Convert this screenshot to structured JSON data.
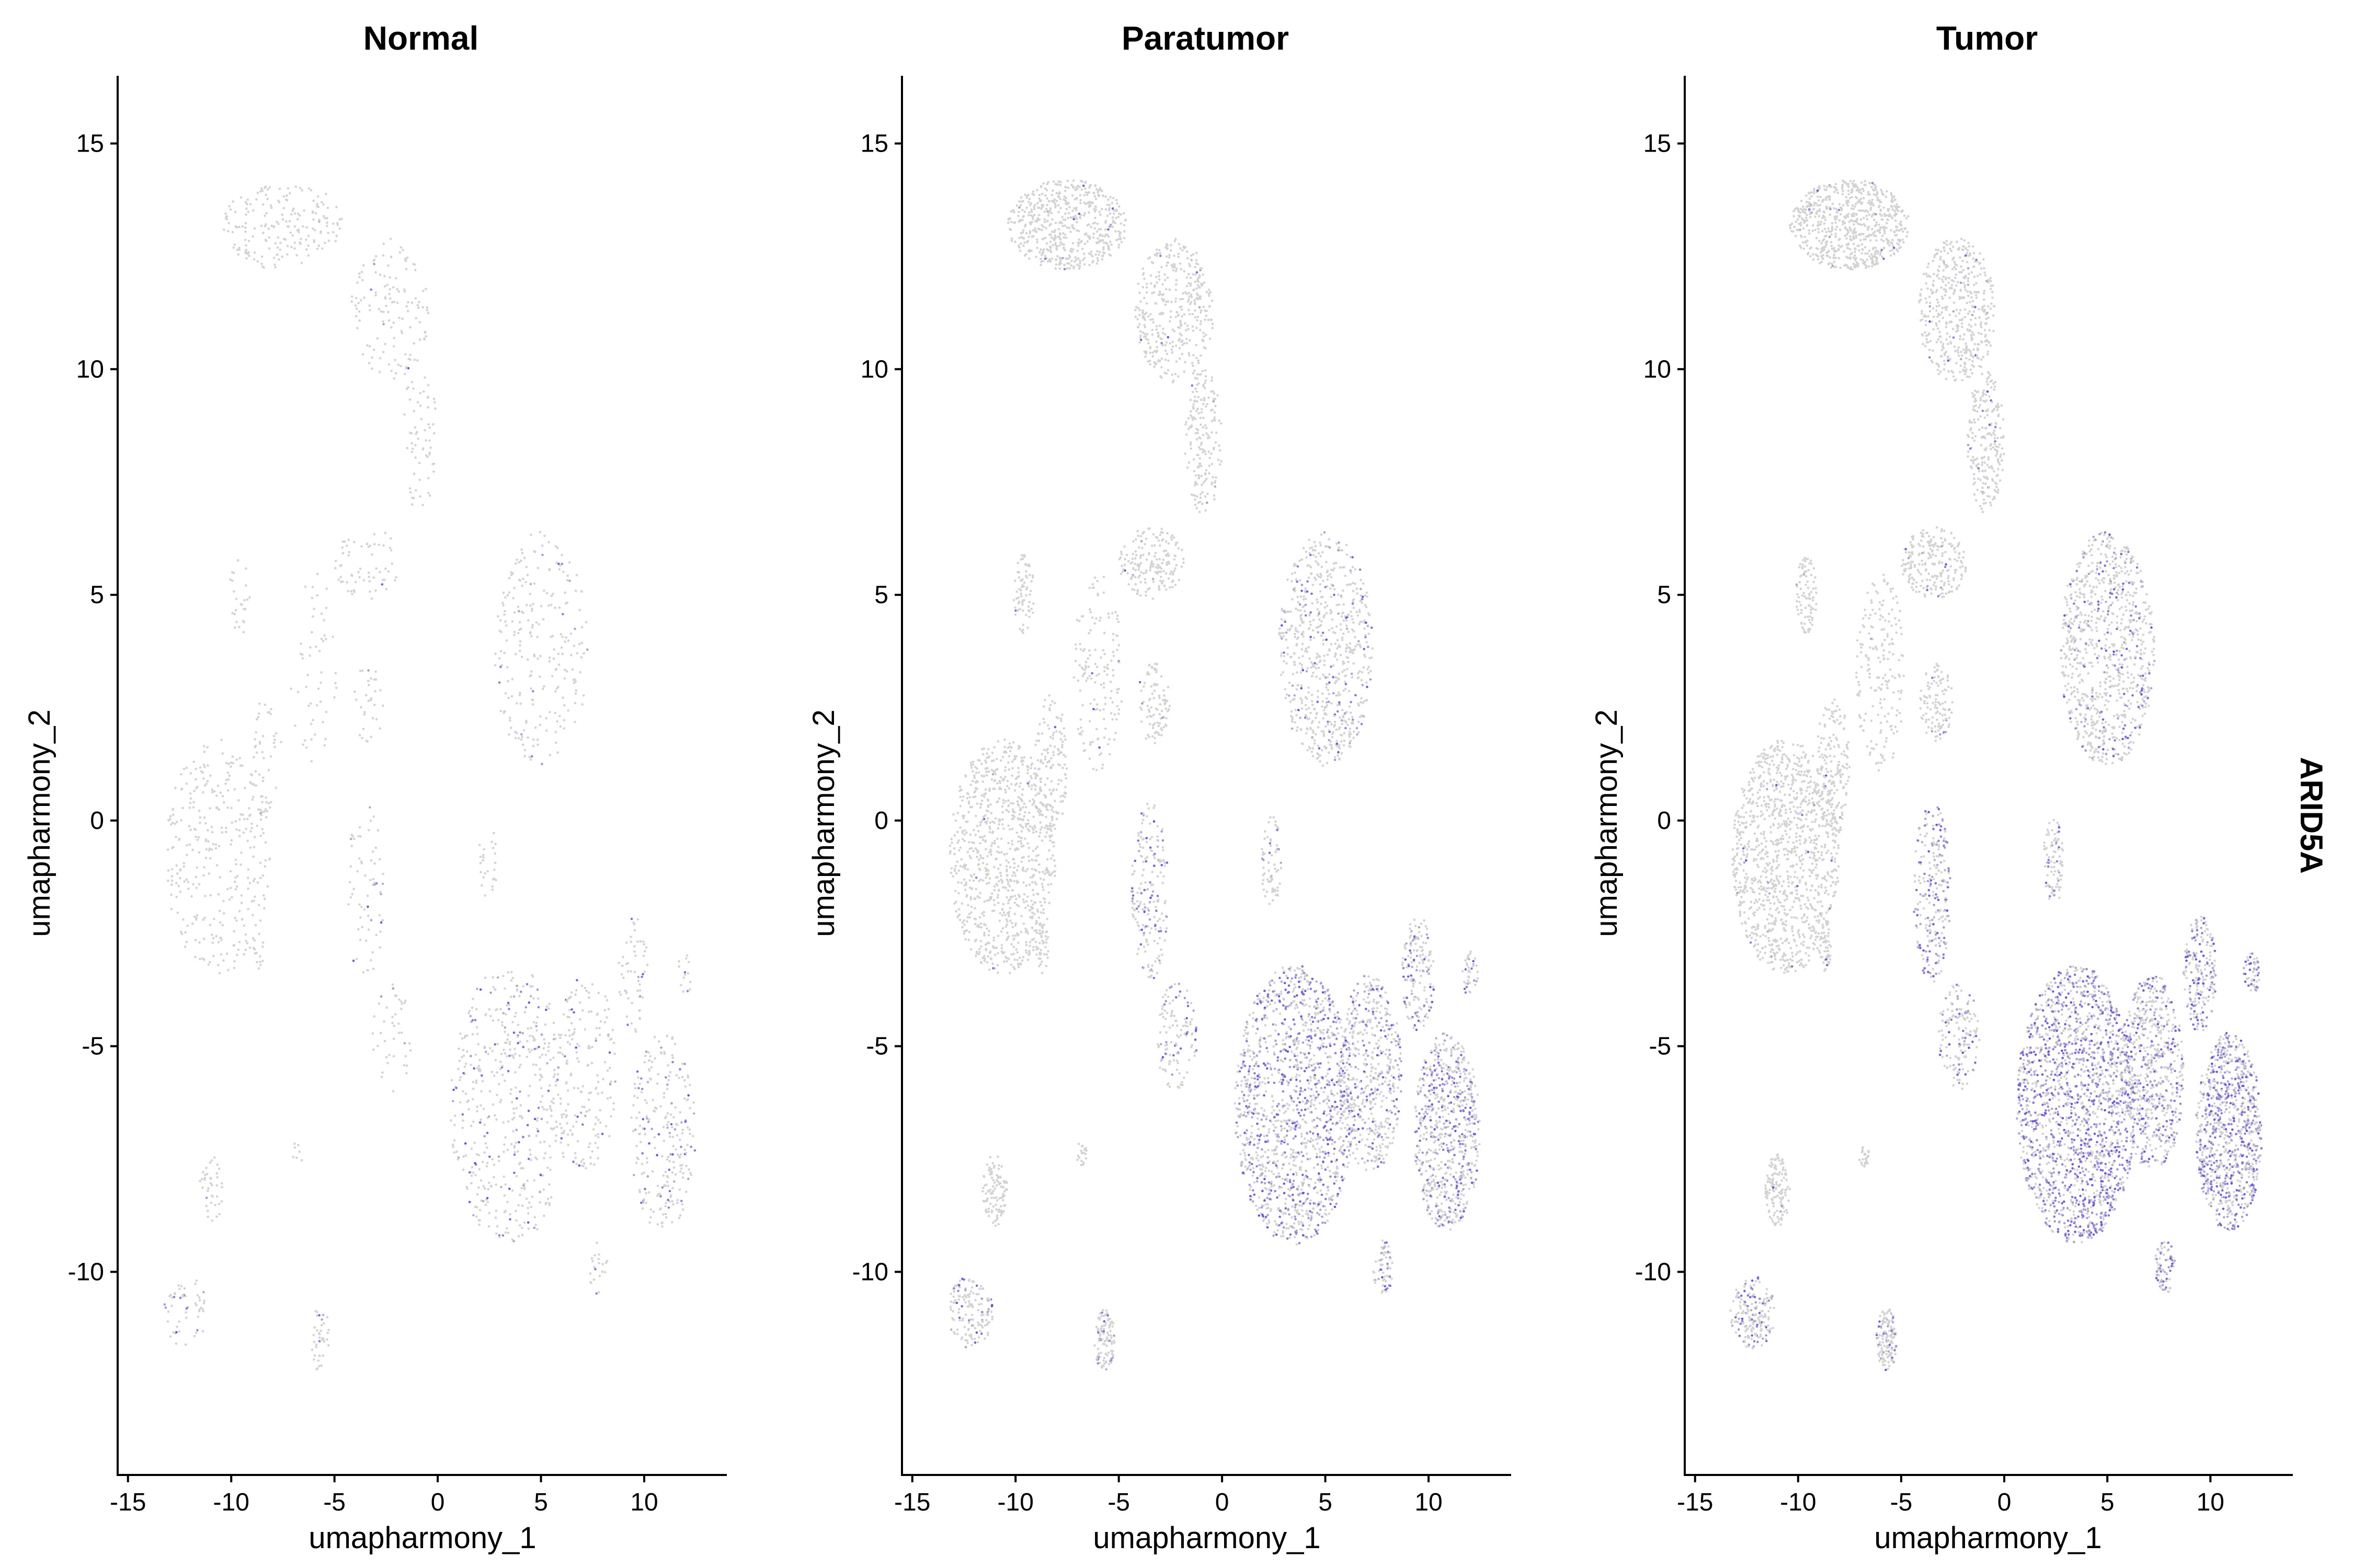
{
  "colors": {
    "low": "#d3d3d3",
    "high": "#6a4fd6",
    "axis": "#000000",
    "background": "#ffffff"
  },
  "chart_data": {
    "type": "scatter",
    "feature": "ARID5A",
    "xlabel": "umapharmony_1",
    "ylabel": "umapharmony_2",
    "xlim": [
      -15.5,
      14
    ],
    "ylim": [
      -14.5,
      16.5
    ],
    "xticks": [
      -15,
      -10,
      -5,
      0,
      5,
      10
    ],
    "yticks": [
      -10,
      -5,
      0,
      5,
      10,
      15
    ],
    "xtick_labels": [
      "-15",
      "-10",
      "-5",
      "0",
      "5",
      "10"
    ],
    "ytick_labels": [
      "-10",
      "-5",
      "0",
      "5",
      "10",
      "15"
    ],
    "grid": false,
    "legend": "none",
    "panels": [
      {
        "title": "Normal",
        "density": 0.35,
        "expression_level": 0.25
      },
      {
        "title": "Paratumor",
        "density": 1.0,
        "expression_level": 0.6
      },
      {
        "title": "Tumor",
        "density": 1.25,
        "expression_level": 0.8
      }
    ],
    "clusters": [
      {
        "name": "top-cap",
        "cx": -7.5,
        "cy": 13.2,
        "rx": 2.9,
        "ry": 1.0,
        "n": 560,
        "expr": 0.03
      },
      {
        "name": "top-arm",
        "cx": -2.3,
        "cy": 11.3,
        "rx": 1.9,
        "ry": 1.6,
        "n": 380,
        "expr": 0.05
      },
      {
        "name": "stem",
        "cx": -0.9,
        "cy": 8.4,
        "rx": 0.9,
        "ry": 1.6,
        "n": 180,
        "expr": 0.05
      },
      {
        "name": "mid-blob",
        "cx": -3.4,
        "cy": 5.7,
        "rx": 1.6,
        "ry": 0.8,
        "n": 180,
        "expr": 0.05
      },
      {
        "name": "bridge",
        "cx": -6.0,
        "cy": 3.3,
        "rx": 1.2,
        "ry": 2.2,
        "n": 150,
        "expr": 0.04
      },
      {
        "name": "small-left",
        "cx": -9.6,
        "cy": 5.0,
        "rx": 0.5,
        "ry": 0.9,
        "n": 70,
        "expr": 0.03
      },
      {
        "name": "small-mid",
        "cx": -3.3,
        "cy": 2.6,
        "rx": 0.8,
        "ry": 0.9,
        "n": 90,
        "expr": 0.04
      },
      {
        "name": "big-left",
        "cx": -10.6,
        "cy": -0.8,
        "rx": 2.6,
        "ry": 2.6,
        "n": 900,
        "expr": 0.02
      },
      {
        "name": "left-stalk",
        "cx": -8.3,
        "cy": 1.2,
        "rx": 0.8,
        "ry": 1.6,
        "n": 140,
        "expr": 0.03
      },
      {
        "name": "left-small",
        "cx": -8.7,
        "cy": -2.8,
        "rx": 0.3,
        "ry": 0.6,
        "n": 40,
        "expr": 0.03
      },
      {
        "name": "right-blob",
        "cx": 5.0,
        "cy": 3.8,
        "rx": 2.3,
        "ry": 2.6,
        "n": 700,
        "expr": 0.25
      },
      {
        "name": "mid-stream",
        "cx": 2.4,
        "cy": -0.9,
        "rx": 0.5,
        "ry": 1.0,
        "n": 70,
        "expr": 0.25
      },
      {
        "name": "left-arc",
        "cx": -3.5,
        "cy": -1.6,
        "rx": 0.9,
        "ry": 2.0,
        "n": 190,
        "expr": 0.6
      },
      {
        "name": "big-bottom",
        "cx": 3.5,
        "cy": -6.3,
        "rx": 2.9,
        "ry": 3.1,
        "n": 1400,
        "expr": 0.75
      },
      {
        "name": "mid-link",
        "cx": 7.2,
        "cy": -5.6,
        "rx": 1.5,
        "ry": 2.2,
        "n": 500,
        "expr": 0.55
      },
      {
        "name": "far-right",
        "cx": 10.9,
        "cy": -6.9,
        "rx": 1.6,
        "ry": 2.2,
        "n": 700,
        "expr": 0.7
      },
      {
        "name": "right-top",
        "cx": 9.5,
        "cy": -3.4,
        "rx": 0.8,
        "ry": 1.3,
        "n": 160,
        "expr": 0.5
      },
      {
        "name": "right-tiny",
        "cx": 12.0,
        "cy": -3.4,
        "rx": 0.4,
        "ry": 0.5,
        "n": 40,
        "expr": 0.5
      },
      {
        "name": "bottom-small",
        "cx": 7.8,
        "cy": -9.9,
        "rx": 0.5,
        "ry": 0.6,
        "n": 60,
        "expr": 0.5
      },
      {
        "name": "diag-chain",
        "cx": -2.2,
        "cy": -4.8,
        "rx": 1.0,
        "ry": 1.2,
        "n": 120,
        "expr": 0.4
      },
      {
        "name": "bottom-left",
        "cx": -11.0,
        "cy": -8.2,
        "rx": 0.6,
        "ry": 0.8,
        "n": 110,
        "expr": 0.02
      },
      {
        "name": "tail-left",
        "cx": -12.2,
        "cy": -10.9,
        "rx": 1.1,
        "ry": 0.8,
        "n": 150,
        "expr": 0.45
      },
      {
        "name": "bottom-mid",
        "cx": -5.7,
        "cy": -11.5,
        "rx": 0.5,
        "ry": 0.7,
        "n": 110,
        "expr": 0.3
      },
      {
        "name": "tiny-mid",
        "cx": -6.8,
        "cy": -7.4,
        "rx": 0.25,
        "ry": 0.3,
        "n": 20,
        "expr": 0.05
      }
    ]
  }
}
